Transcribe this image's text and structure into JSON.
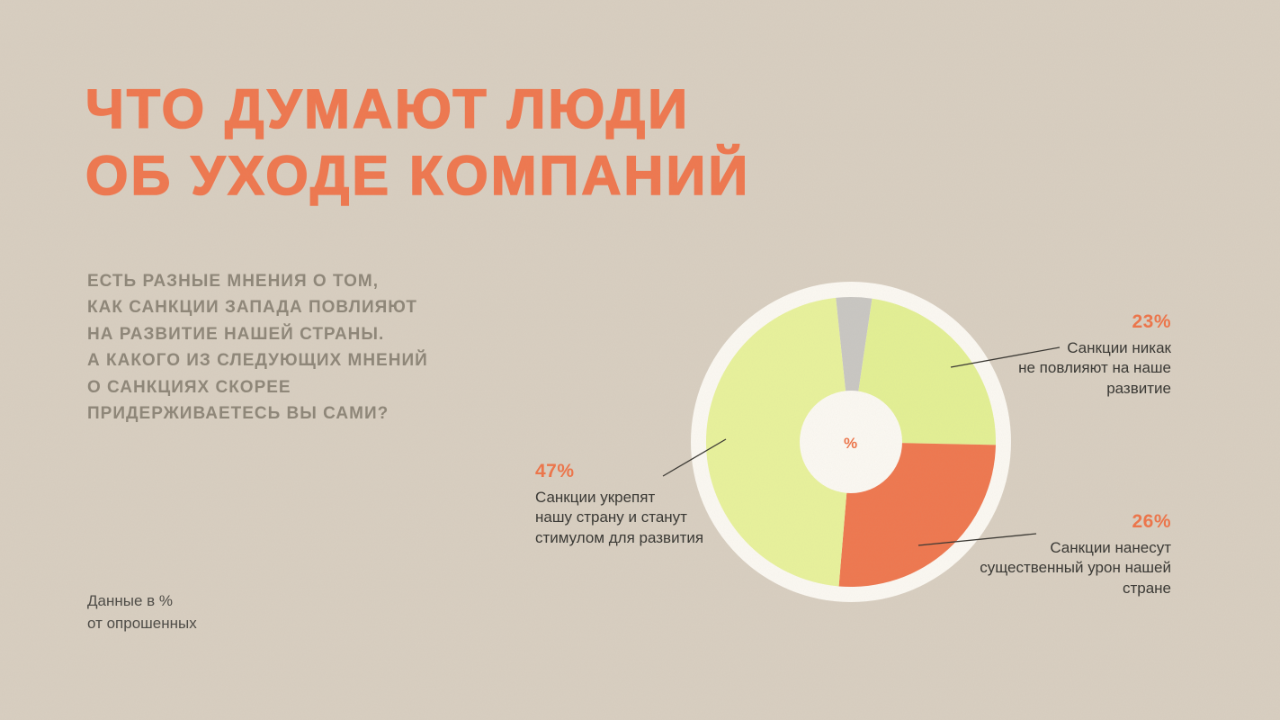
{
  "header": {
    "title": "ЧТО ДУМАЮТ ЛЮДИ\nОБ УХОДЕ КОМПАНИЙ",
    "subtitle": "ЕСТЬ РАЗНЫЕ МНЕНИЯ О ТОМ,\nКАК САНКЦИИ ЗАПАДА ПОВЛИЯЮТ\nНА РАЗВИТИЕ НАШЕЙ СТРАНЫ.\nА КАКОГО ИЗ СЛЕДУЮЩИХ МНЕНИЙ\nО САНКЦИЯХ СКОРЕЕ\nПРИДЕРЖИВАЕТЕСЬ ВЫ САМИ?"
  },
  "footnote": "Данные в %\nот опрошенных",
  "colors": {
    "background": "#d9cfc1",
    "accent_orange": "#ef7347",
    "title_orange": "#f0764d",
    "subtitle_gray": "#8d8577",
    "text_dark": "#34332f",
    "footnote_gray": "#4a4843",
    "ring_white": "#fdfaf4",
    "lime": "#e9f39b",
    "lime_alt": "#e4f193",
    "slice_orange": "#f0764d",
    "slice_gray": "#c9c7c3"
  },
  "chart_data": {
    "type": "pie",
    "center_label": "%",
    "start_angle_deg": -6,
    "slices_clockwise_from_top": [
      {
        "label": "",
        "value": 4,
        "color": "#c9c7c3"
      },
      {
        "label": "Санкции никак не повлияют на наше развитие",
        "value": 23,
        "color": "#e4f193"
      },
      {
        "label": "Санкции нанесут существенный урон нашей стране",
        "value": 26,
        "color": "#f0764d"
      },
      {
        "label": "Санкции укрепят нашу страну и станут стимулом для развития",
        "value": 47,
        "color": "#e9f39b"
      }
    ],
    "callouts": {
      "left": {
        "pct": "47%",
        "text": "Санкции укрепят\nнашу страну и станут\nстимулом для развития"
      },
      "top_right": {
        "pct": "23%",
        "text": "Санкции никак\nне повлияют на наше\nразвитие"
      },
      "bottom_right": {
        "pct": "26%",
        "text": "Санкции нанесут\nсущественный урон нашей\nстране"
      }
    }
  }
}
